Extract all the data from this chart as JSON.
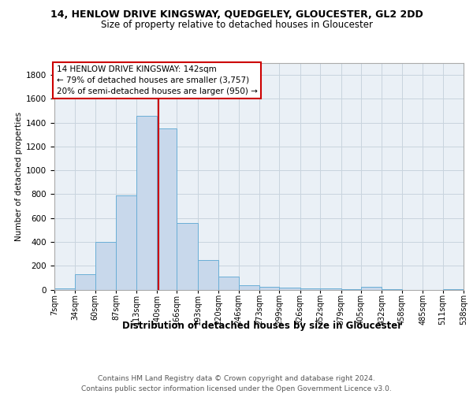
{
  "title": "14, HENLOW DRIVE KINGSWAY, QUEDGELEY, GLOUCESTER, GL2 2DD",
  "subtitle": "Size of property relative to detached houses in Gloucester",
  "xlabel": "Distribution of detached houses by size in Gloucester",
  "ylabel": "Number of detached properties",
  "bin_edges": [
    7,
    34,
    60,
    87,
    113,
    140,
    166,
    193,
    220,
    246,
    273,
    299,
    326,
    352,
    379,
    405,
    432,
    458,
    485,
    511,
    538
  ],
  "bar_heights": [
    10,
    130,
    400,
    790,
    1460,
    1350,
    560,
    250,
    110,
    35,
    25,
    15,
    10,
    10,
    5,
    20,
    5,
    0,
    0,
    5
  ],
  "bar_color": "#c8d8eb",
  "bar_edge_color": "#6aaed6",
  "property_size": 142,
  "vline_color": "#cc0000",
  "ylim": [
    0,
    1900
  ],
  "yticks": [
    0,
    200,
    400,
    600,
    800,
    1000,
    1200,
    1400,
    1600,
    1800
  ],
  "annotation_text": "14 HENLOW DRIVE KINGSWAY: 142sqm\n← 79% of detached houses are smaller (3,757)\n20% of semi-detached houses are larger (950) →",
  "annotation_box_color": "#ffffff",
  "annotation_box_edge": "#cc0000",
  "footer_line1": "Contains HM Land Registry data © Crown copyright and database right 2024.",
  "footer_line2": "Contains public sector information licensed under the Open Government Licence v3.0.",
  "grid_color": "#c8d4de",
  "background_color": "#eaf0f6",
  "title_fontsize": 9,
  "subtitle_fontsize": 8.5,
  "xlabel_fontsize": 8.5,
  "ylabel_fontsize": 7.5,
  "tick_fontsize": 7,
  "annotation_fontsize": 7.5,
  "footer_fontsize": 6.5
}
